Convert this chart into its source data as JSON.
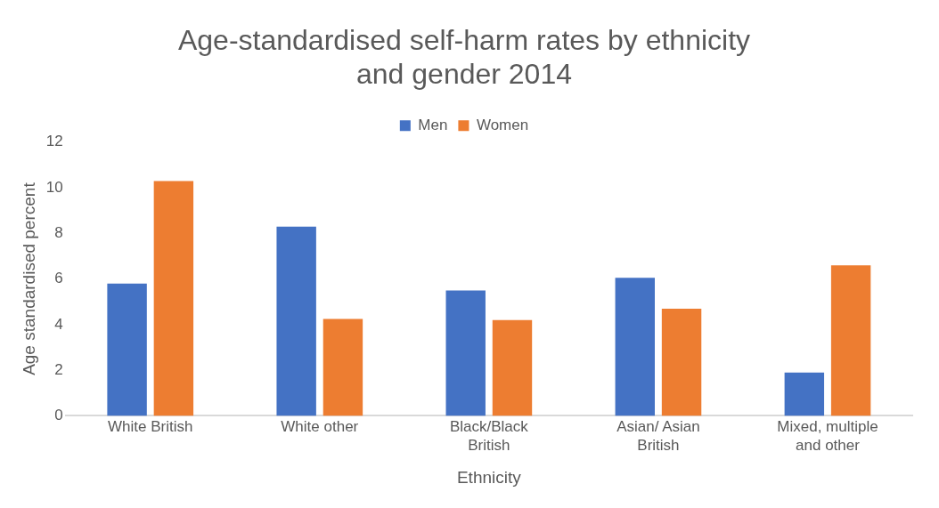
{
  "chart_data": {
    "type": "bar",
    "title": "Age-standardised self-harm rates by ethnicity and gender 2014",
    "xlabel": "Ethnicity",
    "ylabel": "Age standardised percent",
    "categories": [
      "White British",
      "White other",
      "Black/Black British",
      "Asian/ Asian British",
      "Mixed, multiple and other"
    ],
    "series": [
      {
        "name": "Men",
        "color": "#4472c4",
        "values": [
          5.8,
          8.3,
          5.5,
          6.05,
          1.9
        ]
      },
      {
        "name": "Women",
        "color": "#ed7d31",
        "values": [
          10.3,
          4.25,
          4.2,
          4.7,
          6.6
        ]
      }
    ],
    "ylim": [
      0,
      12
    ],
    "yticks": [
      0,
      2,
      4,
      6,
      8,
      10,
      12
    ],
    "grid": false,
    "legend": "top"
  }
}
